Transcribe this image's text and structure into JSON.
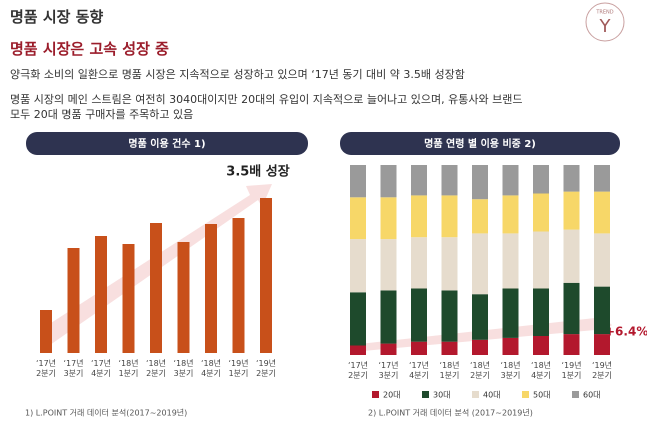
{
  "header": {
    "title": "명품 시장 동향",
    "subtitle": "명품 시장은 고속 성장 중",
    "logo_small": "TREND",
    "logo_letter": "Y"
  },
  "body": {
    "line1": "양극화 소비의 일환으로 명품 시장은 지속적으로 성장하고 있으며 ‘17년 동기 대비 약 3.5배 성장함",
    "line2": "명품 시장의 메인 스트림은 여전히 3040대이지만 20대의 유입이 지속적으로 늘어나고 있으며, 유통사와 브랜드",
    "line3": "모두 20대 명품 구매자를 주목하고 있음"
  },
  "chart_data": [
    {
      "type": "bar",
      "title": "명품 이용 건수 1)",
      "annotation": "3.5배 성장",
      "source": "1) L.POINT 거래 데이터 분석(2017~2019년)",
      "categories": [
        "‘17년 2분기",
        "‘17년 3분기",
        "‘17년 4분기",
        "‘18년 1분기",
        "‘18년 2분기",
        "‘18년 3분기",
        "‘18년 4분기",
        "‘19년 1분기",
        "‘19년 2분기"
      ],
      "values": [
        43,
        105,
        117,
        109,
        130,
        111,
        129,
        135,
        155
      ],
      "color": "#c8501a",
      "ylim": [
        0,
        160
      ]
    },
    {
      "type": "stacked-bar",
      "title": "명품 연령 별 이용 비중 2)",
      "annotation": "+6.4%p",
      "source": "2) L.POINT 거래 데이터 분석 (2017~2019년)",
      "categories": [
        "‘17년 2분기",
        "‘17년 3분기",
        "‘17년 4분기",
        "‘18년 1분기",
        "‘18년 2분기",
        "‘18년 3분기",
        "‘18년 4분기",
        "‘19년 1분기",
        "‘19년 2분기"
      ],
      "ylim": [
        0,
        100
      ],
      "series": [
        {
          "name": "20대",
          "color": "#b3182d",
          "values": [
            5,
            6,
            7,
            7,
            8,
            9,
            10,
            11,
            11
          ]
        },
        {
          "name": "30대",
          "color": "#1e4a2c",
          "values": [
            28,
            28,
            28,
            27,
            24,
            26,
            25,
            27,
            25
          ]
        },
        {
          "name": "40대",
          "color": "#e6dccd",
          "values": [
            28,
            27,
            27,
            28,
            32,
            29,
            30,
            28,
            28
          ]
        },
        {
          "name": "50대",
          "color": "#f7d768",
          "values": [
            22,
            22,
            22,
            22,
            18,
            20,
            20,
            20,
            22
          ]
        },
        {
          "name": "60대",
          "color": "#9a9a9a",
          "values": [
            17,
            17,
            16,
            16,
            18,
            16,
            15,
            14,
            14
          ]
        }
      ]
    }
  ]
}
